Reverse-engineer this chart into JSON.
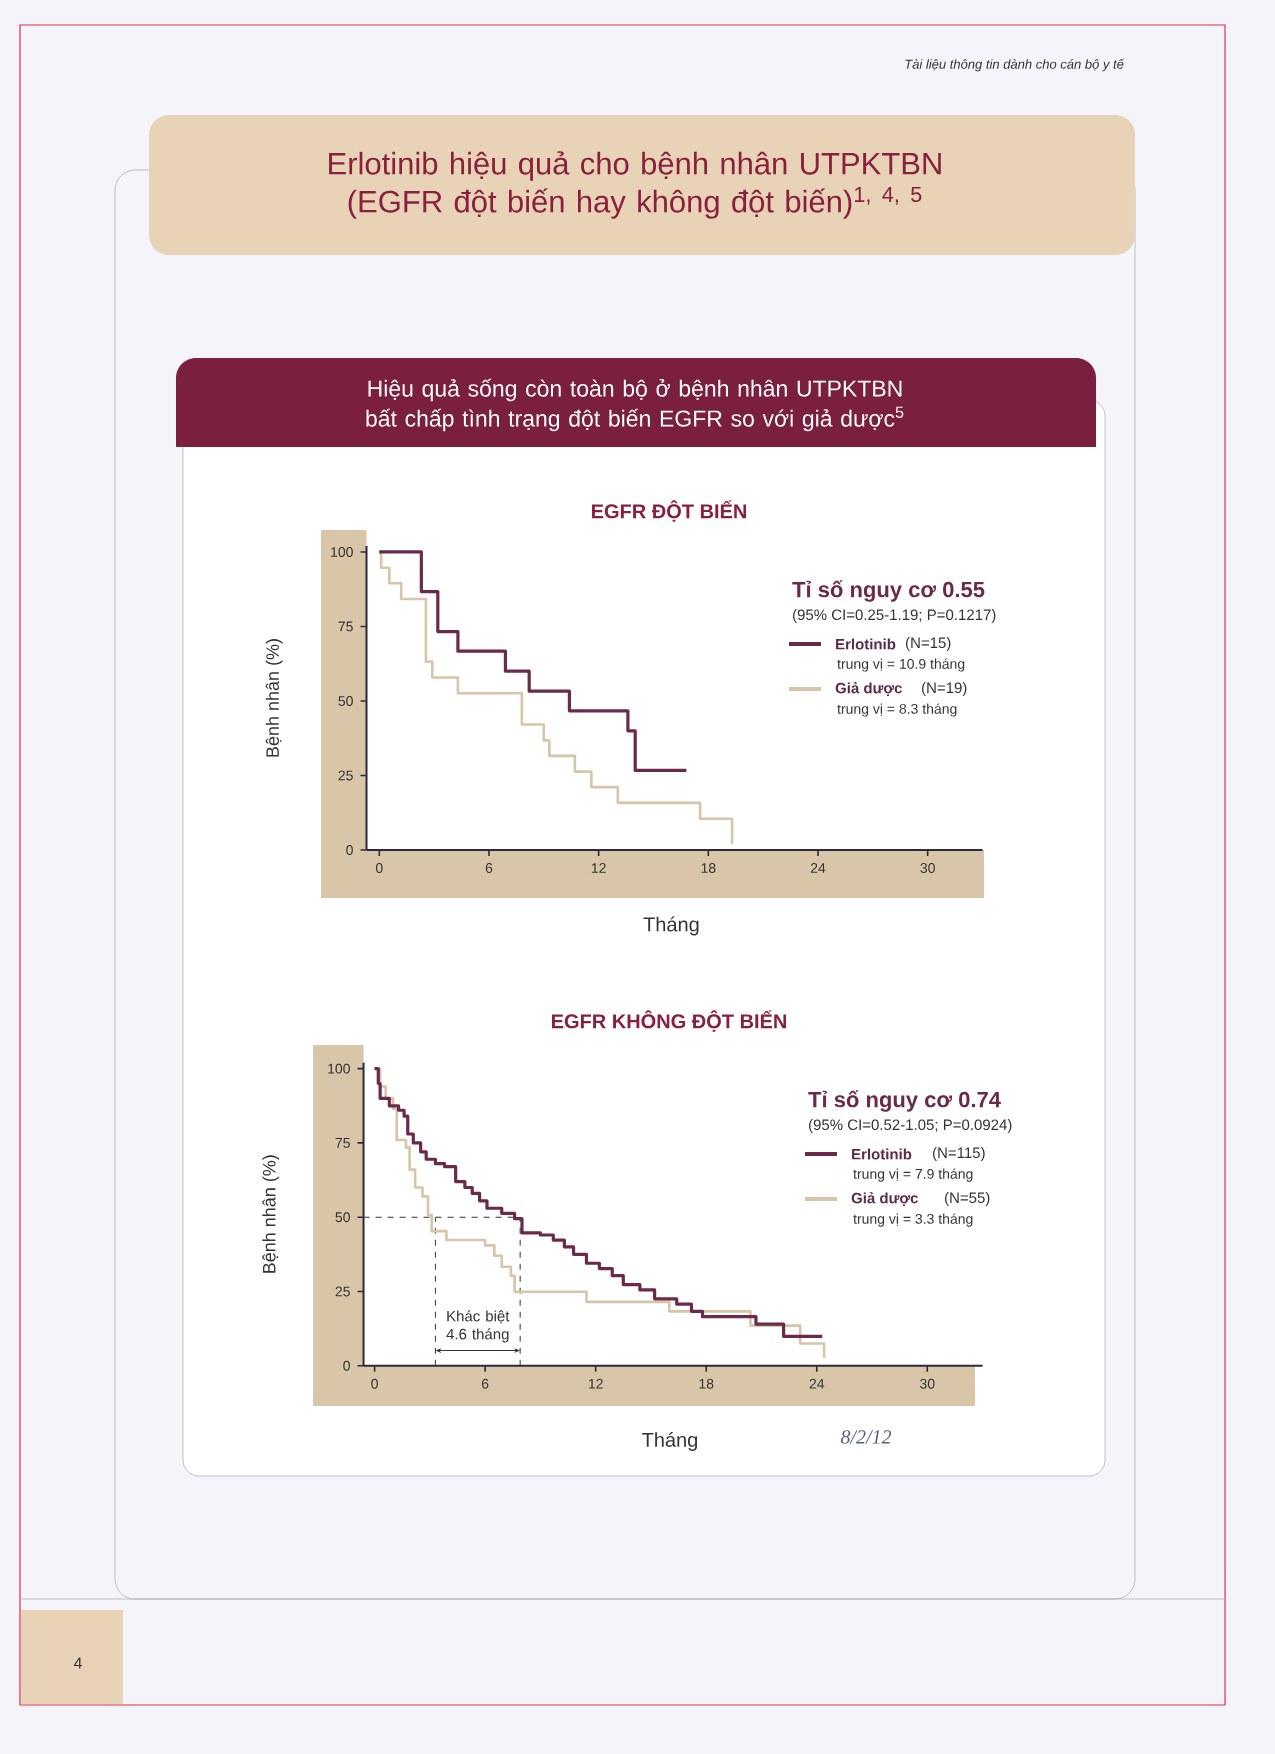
{
  "chart_data": [
    {
      "type": "step",
      "title": "EGFR ĐỘT BIẾN",
      "xlabel": "Tháng",
      "ylabel": "Bệnh nhân (%)",
      "legend_title": "Tỉ số nguy cơ 0.55",
      "legend": "top right",
      "xlim": [
        -0.7,
        33
      ],
      "ylim": [
        0,
        102
      ],
      "xticks": [
        0,
        6,
        12,
        18,
        24,
        30
      ],
      "yticks": [
        0,
        25,
        50,
        75,
        100
      ],
      "series": [
        {
          "name": "Erlotinib",
          "color": "#6b2a4a",
          "x": [
            0,
            2.3,
            3.2,
            4.3,
            6.9,
            8.2,
            10.4,
            13.6,
            14.0,
            16.8
          ],
          "values": [
            100,
            86.7,
            73.3,
            66.7,
            60,
            53.3,
            46.7,
            40,
            26.7,
            26.7
          ]
        },
        {
          "name": "Giả dược",
          "color": "#d8c4a8",
          "x": [
            0,
            0.1,
            0.55,
            1.2,
            2.55,
            2.9,
            4.3,
            7.8,
            9.0,
            9.3,
            10.7,
            11.6,
            13.05,
            17.55,
            19.3,
            19.3
          ],
          "values": [
            100,
            94.7,
            89.5,
            84.2,
            63.2,
            57.9,
            52.6,
            42.1,
            36.8,
            31.6,
            26.3,
            21.1,
            15.8,
            10.5,
            10.5,
            2
          ]
        }
      ],
      "annotations": [
        "(95% CI=0.25-1.19; P=0.1217)",
        "(N=15)",
        "trung vị = 10.9 tháng",
        "(N=19)",
        "trung vị = 8.3 tháng",
        "Tài liệu thông tin dành cho cán bộ y tế",
        "Erlotinib hiệu quả cho bệnh nhân UTPKTBN (EGFR đột biến hay không đột biến)$^{1, 4, 5}$",
        "Hiệu quả sống còn toàn bộ ở bệnh nhân UTPKTBN bất chấp tình trạng đột biến EGFR so với giả dược$^{5}$",
        "4",
        "8/2/12"
      ]
    },
    {
      "type": "step",
      "title": "EGFR KHÔNG ĐỘT BIẾN",
      "xlabel": "Tháng",
      "ylabel": "Bệnh nhân (%)",
      "legend_title": "Tỉ số nguy cơ 0.74",
      "legend": "top right",
      "xlim": [
        -0.6,
        33
      ],
      "ylim": [
        0,
        102
      ],
      "xticks": [
        0,
        6,
        12,
        18,
        24,
        30
      ],
      "yticks": [
        0,
        25,
        50,
        75,
        100
      ],
      "series": [
        {
          "name": "Erlotinib",
          "color": "#6b2a4a",
          "x": [
            0,
            0.2,
            0.3,
            0.8,
            1.3,
            1.6,
            1.8,
            2.1,
            2.5,
            2.8,
            3.3,
            3.8,
            4.4,
            4.9,
            5.3,
            5.7,
            6.1,
            6.9,
            7.6,
            8.0,
            9.0,
            9.7,
            10.3,
            10.8,
            11.5,
            12.2,
            12.9,
            13.5,
            14.4,
            15.2,
            16.4,
            17.2,
            17.8,
            20.7,
            22.2,
            24.3
          ],
          "values": [
            100,
            95,
            90,
            87.5,
            86,
            84,
            78,
            75,
            72,
            69.5,
            68,
            67,
            62,
            60,
            58,
            55.5,
            53,
            51.3,
            49.5,
            44.7,
            44,
            42.3,
            40,
            37.5,
            34.5,
            32.7,
            30.3,
            27.3,
            25.5,
            22.5,
            20.7,
            18.3,
            16.5,
            14,
            9.9,
            9.9
          ]
        },
        {
          "name": "Giả dược",
          "color": "#d8c4a8",
          "x": [
            0,
            0.3,
            0.6,
            1.0,
            1.2,
            1.7,
            1.9,
            2.2,
            2.6,
            2.9,
            3.1,
            3.9,
            6.0,
            6.5,
            6.9,
            7.4,
            7.6,
            11.5,
            16.0,
            20.4,
            23.1,
            24.4,
            24.4
          ],
          "values": [
            100,
            94,
            90,
            86.5,
            76,
            73.5,
            66,
            60,
            57,
            50.7,
            45.3,
            42.3,
            40.5,
            37,
            33.3,
            30.3,
            24.9,
            21.5,
            18.3,
            13.5,
            7.5,
            7.5,
            2.6
          ]
        }
      ],
      "ref_lines": [
        {
          "axis": "y",
          "value": 50,
          "line_style": "dashed",
          "color": "#333333"
        },
        {
          "axis": "x",
          "value": 3.3,
          "line_style": "dashed",
          "color": "#333333"
        },
        {
          "axis": "x",
          "value": 7.9,
          "line_style": "dashed",
          "color": "#333333"
        }
      ],
      "annotations": [
        "(95% CI=0.52-1.05; P=0.0924)",
        "(N=115)",
        "trung vị = 7.9 tháng",
        "(N=55)",
        "trung vị = 3.3 tháng",
        "Khác biệt 4.6 tháng"
      ]
    }
  ]
}
